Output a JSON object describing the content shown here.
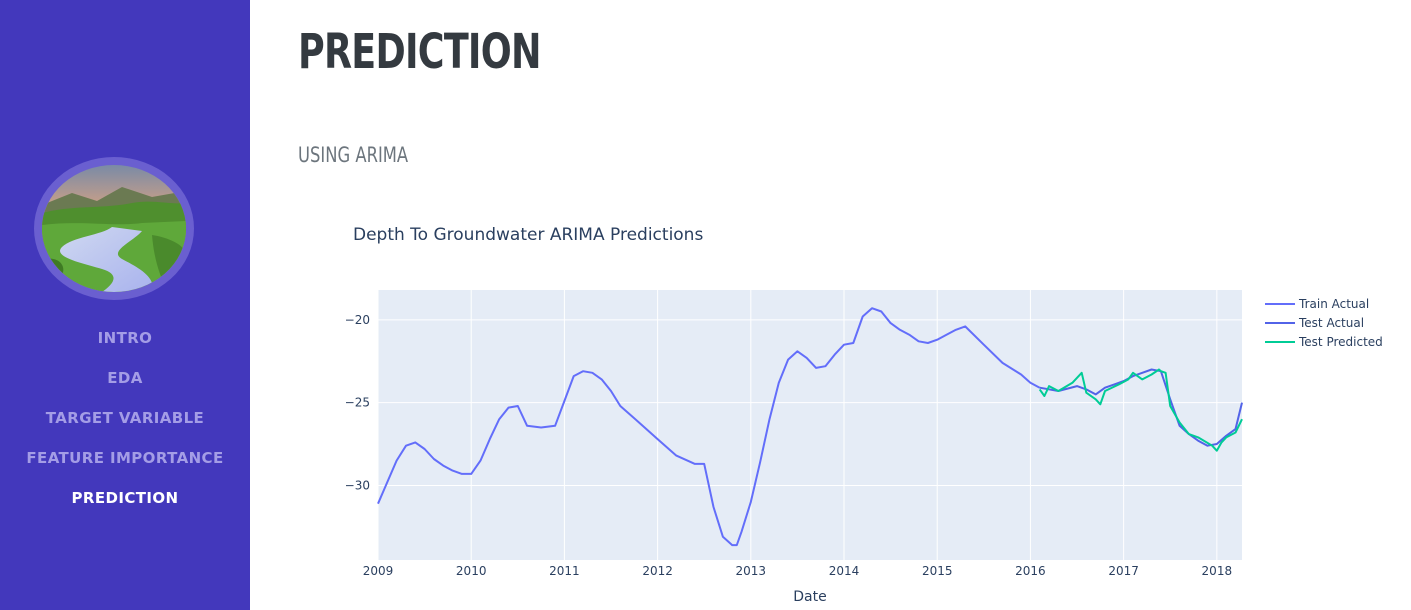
{
  "sidebar": {
    "nav": [
      {
        "label": "INTRO",
        "active": false
      },
      {
        "label": "EDA",
        "active": false
      },
      {
        "label": "TARGET VARIABLE",
        "active": false
      },
      {
        "label": "FEATURE IMPORTANCE",
        "active": false
      },
      {
        "label": "PREDICTION",
        "active": true
      }
    ]
  },
  "main": {
    "title": "PREDICTION",
    "section_title": "USING ARIMA"
  },
  "chart_data": {
    "type": "line",
    "title": "Depth To Groundwater ARIMA Predictions",
    "xlabel": "Date",
    "ylabel": "",
    "xlim": [
      2009.0,
      2018.27
    ],
    "ylim": [
      -34.5,
      -18.2
    ],
    "xticks": [
      "2009",
      "2010",
      "2011",
      "2012",
      "2013",
      "2014",
      "2015",
      "2016",
      "2017",
      "2018"
    ],
    "yticks": [
      -20,
      -25,
      -30
    ],
    "grid": true,
    "legend_position": "top-right",
    "series": [
      {
        "name": "Train Actual",
        "color": "#636efa",
        "x": [
          2009.0,
          2009.1,
          2009.2,
          2009.3,
          2009.4,
          2009.5,
          2009.6,
          2009.7,
          2009.8,
          2009.9,
          2010.0,
          2010.1,
          2010.2,
          2010.3,
          2010.4,
          2010.5,
          2010.6,
          2010.75,
          2010.9,
          2011.0,
          2011.1,
          2011.2,
          2011.3,
          2011.4,
          2011.5,
          2011.6,
          2011.8,
          2012.0,
          2012.2,
          2012.4,
          2012.5,
          2012.6,
          2012.7,
          2012.8,
          2012.85,
          2012.9,
          2013.0,
          2013.1,
          2013.2,
          2013.3,
          2013.4,
          2013.5,
          2013.6,
          2013.7,
          2013.8,
          2013.9,
          2014.0,
          2014.1,
          2014.2,
          2014.3,
          2014.4,
          2014.5,
          2014.6,
          2014.7,
          2014.8,
          2014.9,
          2015.0,
          2015.1,
          2015.2,
          2015.3,
          2015.5,
          2015.7,
          2015.9,
          2016.0,
          2016.1
        ],
        "y": [
          -31.1,
          -29.8,
          -28.5,
          -27.6,
          -27.4,
          -27.8,
          -28.4,
          -28.8,
          -29.1,
          -29.3,
          -29.3,
          -28.5,
          -27.2,
          -26.0,
          -25.3,
          -25.2,
          -26.4,
          -26.5,
          -26.4,
          -24.9,
          -23.4,
          -23.1,
          -23.2,
          -23.6,
          -24.3,
          -25.2,
          -26.2,
          -27.2,
          -28.2,
          -28.7,
          -28.7,
          -31.3,
          -33.1,
          -33.6,
          -33.6,
          -32.8,
          -31.0,
          -28.6,
          -26.0,
          -23.8,
          -22.4,
          -21.9,
          -22.3,
          -22.9,
          -22.8,
          -22.1,
          -21.5,
          -21.4,
          -19.8,
          -19.3,
          -19.5,
          -20.2,
          -20.6,
          -20.9,
          -21.3,
          -21.4,
          -21.2,
          -20.9,
          -20.6,
          -20.4,
          -21.5,
          -22.6,
          -23.3,
          -23.8,
          -24.1
        ]
      },
      {
        "name": "Test Actual",
        "color": "#5263e8",
        "x": [
          2016.1,
          2016.3,
          2016.5,
          2016.6,
          2016.7,
          2016.8,
          2016.9,
          2017.0,
          2017.1,
          2017.2,
          2017.3,
          2017.4,
          2017.5,
          2017.6,
          2017.7,
          2017.8,
          2017.9,
          2018.0,
          2018.1,
          2018.2,
          2018.27
        ],
        "y": [
          -24.1,
          -24.3,
          -24.0,
          -24.2,
          -24.5,
          -24.1,
          -23.9,
          -23.7,
          -23.4,
          -23.2,
          -23.0,
          -23.1,
          -24.8,
          -26.4,
          -26.9,
          -27.3,
          -27.6,
          -27.5,
          -27.0,
          -26.6,
          -25.0
        ]
      },
      {
        "name": "Test Predicted",
        "color": "#00cc96",
        "x": [
          2016.1,
          2016.15,
          2016.2,
          2016.3,
          2016.45,
          2016.55,
          2016.6,
          2016.7,
          2016.75,
          2016.8,
          2016.95,
          2017.05,
          2017.1,
          2017.2,
          2017.3,
          2017.38,
          2017.4,
          2017.45,
          2017.5,
          2017.6,
          2017.7,
          2017.8,
          2017.95,
          2018.0,
          2018.05,
          2018.1,
          2018.2,
          2018.27
        ],
        "y": [
          -24.2,
          -24.6,
          -24.0,
          -24.3,
          -23.8,
          -23.2,
          -24.4,
          -24.8,
          -25.1,
          -24.3,
          -23.9,
          -23.6,
          -23.2,
          -23.6,
          -23.3,
          -23.0,
          -23.1,
          -23.2,
          -25.2,
          -26.2,
          -26.9,
          -27.1,
          -27.6,
          -27.9,
          -27.4,
          -27.1,
          -26.8,
          -26.0
        ]
      }
    ]
  }
}
